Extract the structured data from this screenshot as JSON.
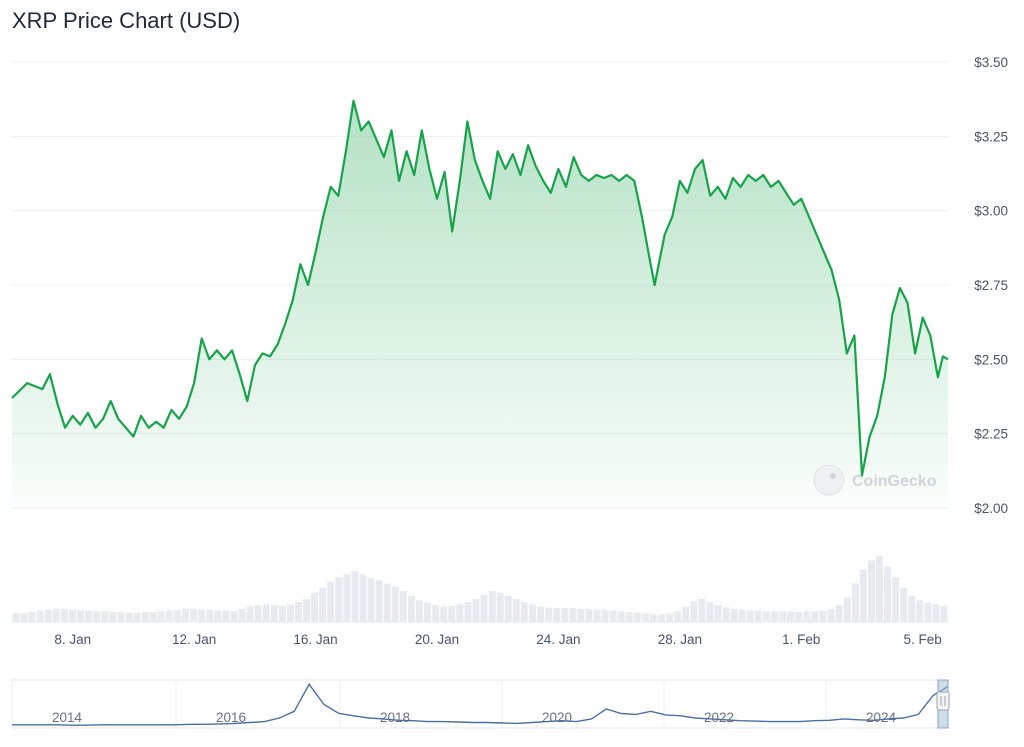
{
  "chart_data": {
    "type": "line",
    "title": "XRP Price Chart (USD)",
    "y_axis": {
      "ticks": [
        2.0,
        2.25,
        2.5,
        2.75,
        3.0,
        3.25,
        3.5
      ],
      "tick_labels": [
        "$2.00",
        "$2.25",
        "$2.50",
        "$2.75",
        "$3.00",
        "$3.25",
        "$3.50"
      ],
      "range": [
        2.0,
        3.5
      ],
      "position": "right"
    },
    "x_axis": {
      "range": [
        "2025-01-06",
        "2025-02-05"
      ],
      "ticks": [
        "2025-01-08",
        "2025-01-12",
        "2025-01-16",
        "2025-01-20",
        "2025-01-24",
        "2025-01-28",
        "2025-02-01",
        "2025-02-05"
      ],
      "tick_labels": [
        "8. Jan",
        "12. Jan",
        "16. Jan",
        "20. Jan",
        "24. Jan",
        "28. Jan",
        "1. Feb",
        "5. Feb"
      ]
    },
    "grid": true,
    "series": [
      {
        "color": "#16a34a",
        "fill": "area-gradient",
        "points": [
          [
            "2025-01-06",
            2.37
          ],
          [
            "2025-01-06T12:00",
            2.42
          ],
          [
            "2025-01-07",
            2.4
          ],
          [
            "2025-01-07T06:00",
            2.45
          ],
          [
            "2025-01-07T12:00",
            2.35
          ],
          [
            "2025-01-07T18:00",
            2.27
          ],
          [
            "2025-01-08",
            2.31
          ],
          [
            "2025-01-08T06:00",
            2.28
          ],
          [
            "2025-01-08T12:00",
            2.32
          ],
          [
            "2025-01-08T18:00",
            2.27
          ],
          [
            "2025-01-09",
            2.3
          ],
          [
            "2025-01-09T06:00",
            2.36
          ],
          [
            "2025-01-09T12:00",
            2.3
          ],
          [
            "2025-01-09T18:00",
            2.27
          ],
          [
            "2025-01-10",
            2.24
          ],
          [
            "2025-01-10T06:00",
            2.31
          ],
          [
            "2025-01-10T12:00",
            2.27
          ],
          [
            "2025-01-10T18:00",
            2.29
          ],
          [
            "2025-01-11",
            2.27
          ],
          [
            "2025-01-11T06:00",
            2.33
          ],
          [
            "2025-01-11T12:00",
            2.3
          ],
          [
            "2025-01-11T18:00",
            2.34
          ],
          [
            "2025-01-12",
            2.42
          ],
          [
            "2025-01-12T06:00",
            2.57
          ],
          [
            "2025-01-12T12:00",
            2.5
          ],
          [
            "2025-01-12T18:00",
            2.53
          ],
          [
            "2025-01-13",
            2.5
          ],
          [
            "2025-01-13T06:00",
            2.53
          ],
          [
            "2025-01-13T12:00",
            2.45
          ],
          [
            "2025-01-13T18:00",
            2.36
          ],
          [
            "2025-01-14",
            2.48
          ],
          [
            "2025-01-14T06:00",
            2.52
          ],
          [
            "2025-01-14T12:00",
            2.51
          ],
          [
            "2025-01-14T18:00",
            2.55
          ],
          [
            "2025-01-15",
            2.62
          ],
          [
            "2025-01-15T06:00",
            2.7
          ],
          [
            "2025-01-15T12:00",
            2.82
          ],
          [
            "2025-01-15T18:00",
            2.75
          ],
          [
            "2025-01-16",
            2.86
          ],
          [
            "2025-01-16T06:00",
            2.98
          ],
          [
            "2025-01-16T12:00",
            3.08
          ],
          [
            "2025-01-16T18:00",
            3.05
          ],
          [
            "2025-01-17",
            3.2
          ],
          [
            "2025-01-17T06:00",
            3.37
          ],
          [
            "2025-01-17T12:00",
            3.27
          ],
          [
            "2025-01-17T18:00",
            3.3
          ],
          [
            "2025-01-18",
            3.24
          ],
          [
            "2025-01-18T06:00",
            3.18
          ],
          [
            "2025-01-18T12:00",
            3.27
          ],
          [
            "2025-01-18T18:00",
            3.1
          ],
          [
            "2025-01-19",
            3.2
          ],
          [
            "2025-01-19T06:00",
            3.12
          ],
          [
            "2025-01-19T12:00",
            3.27
          ],
          [
            "2025-01-19T18:00",
            3.14
          ],
          [
            "2025-01-20",
            3.04
          ],
          [
            "2025-01-20T06:00",
            3.13
          ],
          [
            "2025-01-20T12:00",
            2.93
          ],
          [
            "2025-01-20T18:00",
            3.1
          ],
          [
            "2025-01-21",
            3.3
          ],
          [
            "2025-01-21T06:00",
            3.17
          ],
          [
            "2025-01-21T12:00",
            3.1
          ],
          [
            "2025-01-21T18:00",
            3.04
          ],
          [
            "2025-01-22",
            3.2
          ],
          [
            "2025-01-22T06:00",
            3.14
          ],
          [
            "2025-01-22T12:00",
            3.19
          ],
          [
            "2025-01-22T18:00",
            3.12
          ],
          [
            "2025-01-23",
            3.22
          ],
          [
            "2025-01-23T06:00",
            3.15
          ],
          [
            "2025-01-23T12:00",
            3.1
          ],
          [
            "2025-01-23T18:00",
            3.06
          ],
          [
            "2025-01-24",
            3.14
          ],
          [
            "2025-01-24T06:00",
            3.08
          ],
          [
            "2025-01-24T12:00",
            3.18
          ],
          [
            "2025-01-24T18:00",
            3.12
          ],
          [
            "2025-01-25",
            3.1
          ],
          [
            "2025-01-25T06:00",
            3.12
          ],
          [
            "2025-01-25T12:00",
            3.11
          ],
          [
            "2025-01-25T18:00",
            3.12
          ],
          [
            "2025-01-26",
            3.1
          ],
          [
            "2025-01-26T06:00",
            3.12
          ],
          [
            "2025-01-26T12:00",
            3.1
          ],
          [
            "2025-01-26T18:00",
            2.98
          ],
          [
            "2025-01-27",
            2.84
          ],
          [
            "2025-01-27T04:00",
            2.75
          ],
          [
            "2025-01-27T12:00",
            2.92
          ],
          [
            "2025-01-27T18:00",
            2.98
          ],
          [
            "2025-01-28",
            3.1
          ],
          [
            "2025-01-28T06:00",
            3.06
          ],
          [
            "2025-01-28T12:00",
            3.14
          ],
          [
            "2025-01-28T18:00",
            3.17
          ],
          [
            "2025-01-29",
            3.05
          ],
          [
            "2025-01-29T06:00",
            3.08
          ],
          [
            "2025-01-29T12:00",
            3.04
          ],
          [
            "2025-01-29T18:00",
            3.11
          ],
          [
            "2025-01-30",
            3.08
          ],
          [
            "2025-01-30T06:00",
            3.12
          ],
          [
            "2025-01-30T12:00",
            3.1
          ],
          [
            "2025-01-30T18:00",
            3.12
          ],
          [
            "2025-01-31",
            3.08
          ],
          [
            "2025-01-31T06:00",
            3.1
          ],
          [
            "2025-01-31T12:00",
            3.06
          ],
          [
            "2025-01-31T18:00",
            3.02
          ],
          [
            "2025-02-01",
            3.04
          ],
          [
            "2025-02-01T06:00",
            2.98
          ],
          [
            "2025-02-01T12:00",
            2.92
          ],
          [
            "2025-02-01T18:00",
            2.86
          ],
          [
            "2025-02-02",
            2.8
          ],
          [
            "2025-02-02T06:00",
            2.7
          ],
          [
            "2025-02-02T12:00",
            2.52
          ],
          [
            "2025-02-02T18:00",
            2.58
          ],
          [
            "2025-02-03",
            2.11
          ],
          [
            "2025-02-03T06:00",
            2.24
          ],
          [
            "2025-02-03T12:00",
            2.31
          ],
          [
            "2025-02-03T18:00",
            2.44
          ],
          [
            "2025-02-04",
            2.65
          ],
          [
            "2025-02-04T06:00",
            2.74
          ],
          [
            "2025-02-04T12:00",
            2.69
          ],
          [
            "2025-02-04T18:00",
            2.52
          ],
          [
            "2025-02-05",
            2.64
          ],
          [
            "2025-02-05T06:00",
            2.58
          ],
          [
            "2025-02-05T12:00",
            2.44
          ],
          [
            "2025-02-05T16:00",
            2.51
          ],
          [
            "2025-02-05T20:00",
            2.5
          ]
        ]
      }
    ],
    "volume": [
      0.12,
      0.11,
      0.13,
      0.15,
      0.16,
      0.17,
      0.17,
      0.16,
      0.15,
      0.15,
      0.14,
      0.14,
      0.13,
      0.13,
      0.12,
      0.12,
      0.13,
      0.13,
      0.14,
      0.15,
      0.16,
      0.17,
      0.17,
      0.16,
      0.16,
      0.15,
      0.15,
      0.14,
      0.17,
      0.2,
      0.22,
      0.23,
      0.22,
      0.21,
      0.23,
      0.26,
      0.3,
      0.38,
      0.45,
      0.52,
      0.58,
      0.62,
      0.66,
      0.62,
      0.57,
      0.54,
      0.5,
      0.46,
      0.4,
      0.34,
      0.28,
      0.25,
      0.22,
      0.2,
      0.21,
      0.23,
      0.26,
      0.3,
      0.35,
      0.4,
      0.38,
      0.34,
      0.3,
      0.26,
      0.23,
      0.2,
      0.19,
      0.18,
      0.18,
      0.18,
      0.17,
      0.17,
      0.16,
      0.16,
      0.15,
      0.14,
      0.13,
      0.12,
      0.11,
      0.1,
      0.1,
      0.11,
      0.14,
      0.2,
      0.27,
      0.3,
      0.26,
      0.22,
      0.19,
      0.17,
      0.16,
      0.15,
      0.15,
      0.14,
      0.14,
      0.14,
      0.14,
      0.13,
      0.14,
      0.14,
      0.15,
      0.17,
      0.22,
      0.32,
      0.5,
      0.68,
      0.8,
      0.86,
      0.72,
      0.58,
      0.44,
      0.34,
      0.28,
      0.25,
      0.23,
      0.21
    ]
  },
  "navigator": {
    "year_labels": [
      "2014",
      "2016",
      "2018",
      "2020",
      "2022",
      "2024"
    ],
    "line_color": "#4a6fa5",
    "history": [
      0.05,
      0.05,
      0.05,
      0.05,
      0.04,
      0.04,
      0.05,
      0.05,
      0.05,
      0.05,
      0.05,
      0.05,
      0.06,
      0.06,
      0.07,
      0.08,
      0.1,
      0.12,
      0.2,
      0.35,
      0.95,
      0.5,
      0.3,
      0.25,
      0.2,
      0.18,
      0.15,
      0.14,
      0.12,
      0.12,
      0.11,
      0.1,
      0.1,
      0.09,
      0.08,
      0.1,
      0.12,
      0.14,
      0.12,
      0.18,
      0.4,
      0.3,
      0.28,
      0.35,
      0.27,
      0.25,
      0.2,
      0.18,
      0.16,
      0.14,
      0.13,
      0.12,
      0.12,
      0.12,
      0.14,
      0.15,
      0.18,
      0.16,
      0.15,
      0.18,
      0.2,
      0.28,
      0.7,
      0.9
    ]
  },
  "watermark": {
    "text": "CoinGecko"
  }
}
